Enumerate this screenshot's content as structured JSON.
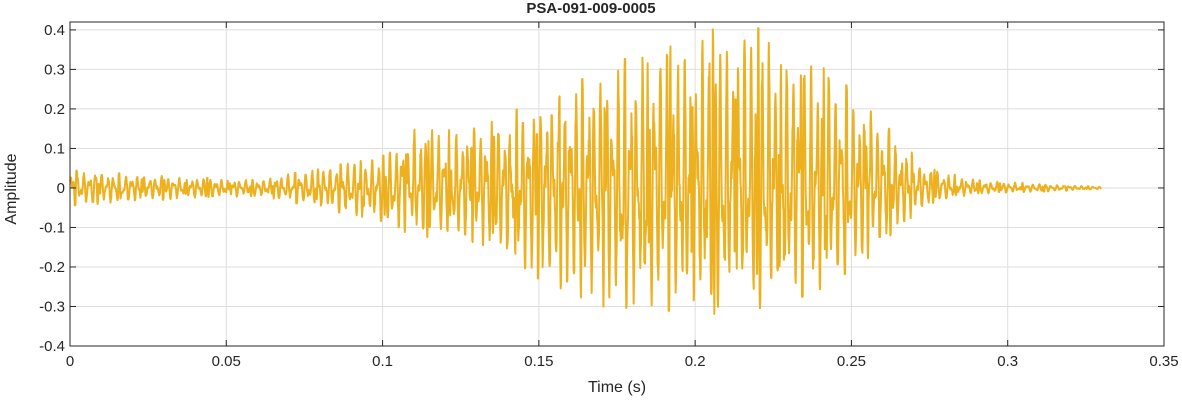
{
  "chart_data": {
    "type": "line",
    "title": "PSA-091-009-0005",
    "xlabel": "Time (s)",
    "ylabel": "Amplitude",
    "xlim": [
      0,
      0.35
    ],
    "ylim": [
      -0.4,
      0.42
    ],
    "grid": true,
    "x_ticks": [
      0,
      0.05,
      0.1,
      0.15,
      0.2,
      0.25,
      0.3,
      0.35
    ],
    "x_tick_labels": [
      "0",
      "0.05",
      "0.1",
      "0.15",
      "0.2",
      "0.25",
      "0.3",
      "0.35"
    ],
    "y_ticks": [
      -0.4,
      -0.3,
      -0.2,
      -0.1,
      0,
      0.1,
      0.2,
      0.3,
      0.4
    ],
    "y_tick_labels": [
      "-0.4",
      "-0.3",
      "-0.2",
      "-0.1",
      "0",
      "0.1",
      "0.2",
      "0.3",
      "0.4"
    ],
    "series": [
      {
        "color": "#EDB120",
        "x_start": 0,
        "x_end": 0.33,
        "envelope": {
          "t": [
            0,
            0.03,
            0.06,
            0.08,
            0.1,
            0.11,
            0.13,
            0.15,
            0.17,
            0.19,
            0.205,
            0.215,
            0.225,
            0.24,
            0.255,
            0.265,
            0.275,
            0.29,
            0.31,
            0.33
          ],
          "positive_peak": [
            0.045,
            0.03,
            0.02,
            0.05,
            0.08,
            0.15,
            0.16,
            0.22,
            0.3,
            0.37,
            0.4,
            0.42,
            0.39,
            0.31,
            0.22,
            0.12,
            0.05,
            0.02,
            0.01,
            0.003
          ],
          "negative_peak": [
            -0.045,
            -0.03,
            -0.02,
            -0.05,
            -0.09,
            -0.12,
            -0.14,
            -0.23,
            -0.3,
            -0.31,
            -0.32,
            -0.31,
            -0.3,
            -0.26,
            -0.18,
            -0.1,
            -0.04,
            -0.015,
            -0.01,
            -0.003
          ]
        }
      }
    ]
  }
}
